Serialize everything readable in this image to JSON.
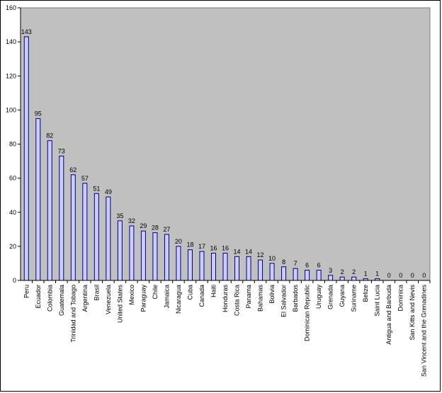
{
  "chart_data": {
    "type": "bar",
    "title": "",
    "xlabel": "",
    "ylabel": "",
    "ylim": [
      0,
      160
    ],
    "yticks": [
      0,
      20,
      40,
      60,
      80,
      100,
      120,
      140,
      160
    ],
    "grid": false,
    "plot_background": "#C0C0C0",
    "bar_fill": "#CCCCFF",
    "bar_stroke": "#000080",
    "categories": [
      "Peru",
      "Ecuador",
      "Colombia",
      "Guatemala",
      "Trinidad and Tobago",
      "Argentina",
      "Brasil",
      "Venezuela",
      "United States",
      "Mexico",
      "Paraguay",
      "Chile",
      "Jamaica",
      "Nicaragua",
      "Cuba",
      "Canada",
      "Haiti",
      "Honduras",
      "Costa Rica",
      "Panama",
      "Bahamas",
      "Bolivia",
      "El Salvador",
      "Barbados",
      "Dominican Republic",
      "Uruguay",
      "Grenada",
      "Guyana",
      "Suriname",
      "Belize",
      "Saint Lucia",
      "Antigua and Barbuda",
      "Dominica",
      "San Kitts and Nevis",
      "San Vincent and the Grenadines"
    ],
    "values": [
      143,
      95,
      82,
      73,
      62,
      57,
      51,
      49,
      35,
      32,
      29,
      28,
      27,
      20,
      18,
      17,
      16,
      16,
      14,
      14,
      12,
      10,
      8,
      7,
      6,
      6,
      3,
      2,
      2,
      1,
      1,
      0,
      0,
      0,
      0
    ]
  }
}
